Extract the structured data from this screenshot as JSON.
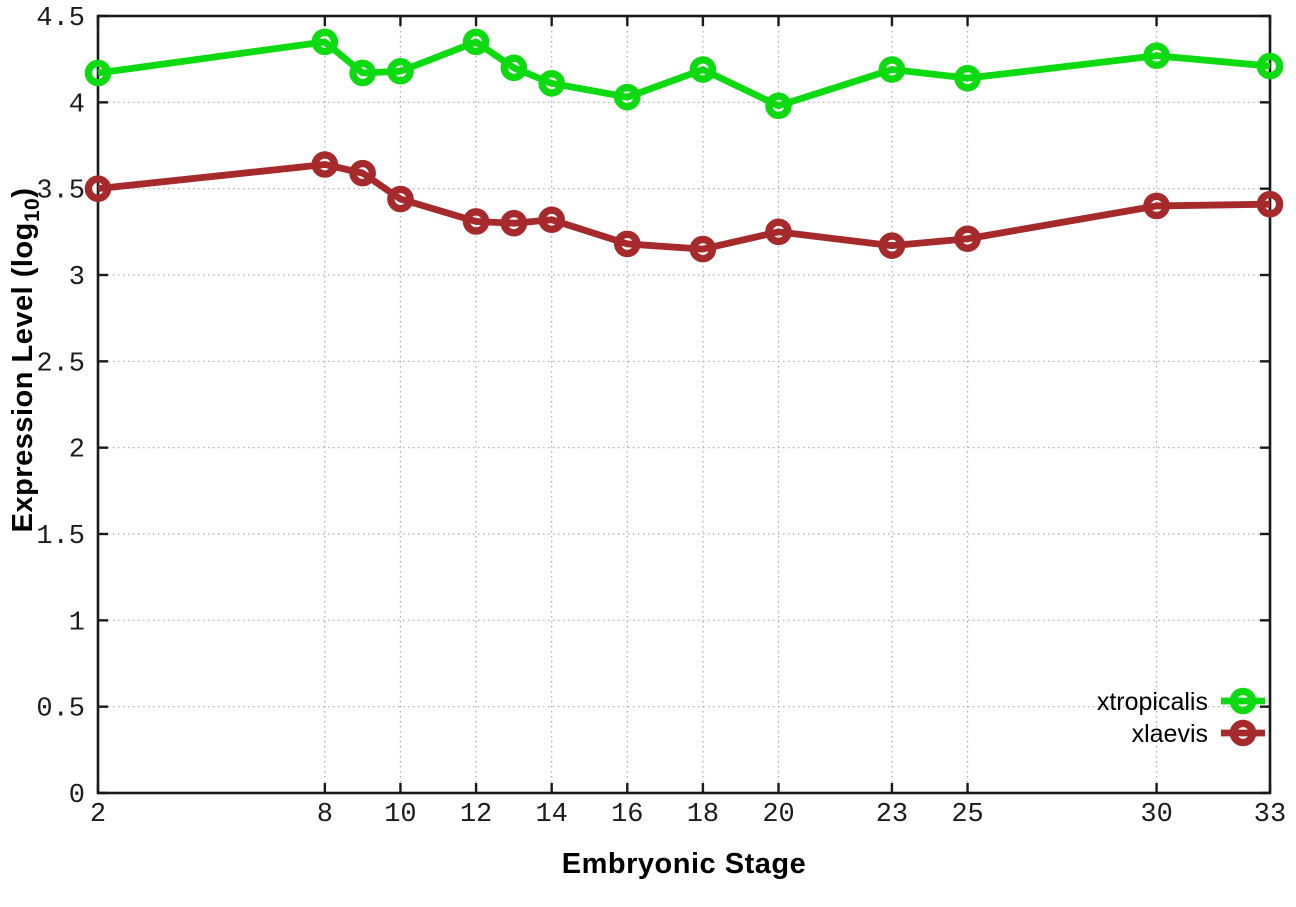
{
  "page": {
    "background": "#ffffff"
  },
  "chart_data": {
    "type": "line",
    "title": "",
    "xlabel": "Embryonic Stage",
    "ylabel": "Expression Level (log10)",
    "ylabel_parts": {
      "pre": "Expression Level (log",
      "sub": "10",
      "post": ")"
    },
    "x": [
      2,
      8,
      9,
      10,
      12,
      13,
      14,
      16,
      18,
      20,
      23,
      25,
      30,
      33
    ],
    "series": [
      {
        "name": "xtropicalis",
        "color": "#0eda12",
        "values": [
          4.17,
          4.35,
          4.17,
          4.18,
          4.35,
          4.2,
          4.11,
          4.03,
          4.19,
          3.98,
          4.19,
          4.14,
          4.27,
          4.21
        ]
      },
      {
        "name": "xlaevis",
        "color": "#a62a2c",
        "values": [
          3.5,
          3.64,
          3.59,
          3.44,
          3.31,
          3.3,
          3.32,
          3.18,
          3.15,
          3.25,
          3.17,
          3.21,
          3.4,
          3.41
        ]
      }
    ],
    "xlim": [
      2,
      33
    ],
    "ylim": [
      0,
      4.5
    ],
    "xticks": [
      2,
      8,
      10,
      12,
      14,
      16,
      18,
      20,
      23,
      25,
      30,
      33
    ],
    "xtick_labels": [
      "2",
      "8",
      "10",
      "12",
      "14",
      "16",
      "18",
      "20",
      "23",
      "25",
      "30",
      "33"
    ],
    "yticks": [
      0,
      0.5,
      1,
      1.5,
      2,
      2.5,
      3,
      3.5,
      4,
      4.5
    ],
    "ytick_labels": [
      "0",
      "0.5",
      "1",
      "1.5",
      "2",
      "2.5",
      "3",
      "3.5",
      "4",
      "4.5"
    ],
    "grid": true,
    "legend_position": "inside-bottom-right",
    "marker": "open-circle"
  },
  "styles": {
    "grid_color": "#a9a9a9",
    "axis_color": "#1a1a1a",
    "tick_label_color": "#1c1c1c",
    "line_width": 6.8
  }
}
